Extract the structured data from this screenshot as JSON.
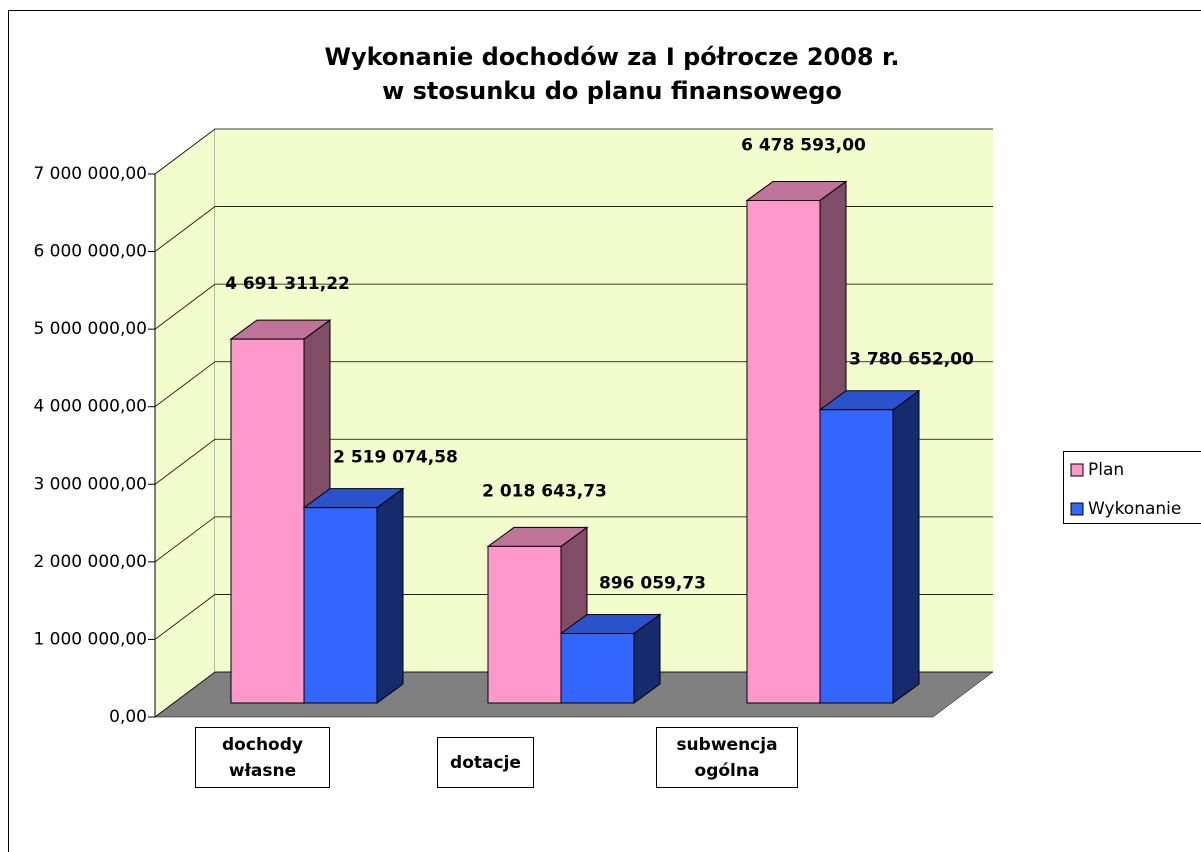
{
  "chart_data": {
    "type": "bar3d",
    "title": [
      "Wykonanie dochodów za I półrocze 2008 r.",
      "w stosunku do planu finansowego"
    ],
    "categories": [
      "dochody własne",
      "dotacje",
      "subwencja ogólna"
    ],
    "series": [
      {
        "name": "Plan",
        "color": "#ff99cc",
        "values": [
          4691311.22,
          2018643.73,
          6478593.0
        ],
        "value_labels": [
          "4 691 311,22",
          "2 018 643,73",
          "6 478 593,00"
        ]
      },
      {
        "name": "Wykonanie",
        "color": "#3366ff",
        "values": [
          2519074.58,
          896059.73,
          3780652.0
        ],
        "value_labels": [
          "2 519 074,58",
          "896 059,73",
          "3 780 652,00"
        ]
      }
    ],
    "ylim": [
      0,
      7000000
    ],
    "yticks": [
      {
        "value": 0,
        "label": "0,00"
      },
      {
        "value": 1000000,
        "label": "1 000 000,00"
      },
      {
        "value": 2000000,
        "label": "2 000 000,00"
      },
      {
        "value": 3000000,
        "label": "3 000 000,00"
      },
      {
        "value": 4000000,
        "label": "4 000 000,00"
      },
      {
        "value": 5000000,
        "label": "5 000 000,00"
      },
      {
        "value": 6000000,
        "label": "6 000 000,00"
      },
      {
        "value": 7000000,
        "label": "7 000 000,00"
      }
    ],
    "grid": true,
    "legend": "right"
  }
}
